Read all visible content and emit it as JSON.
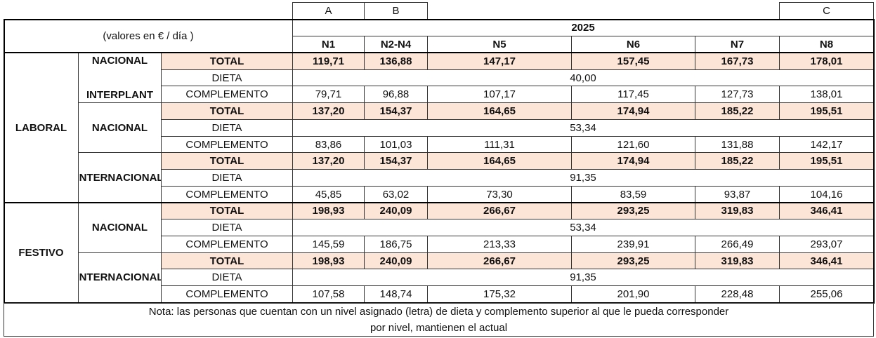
{
  "column_letters": [
    "A",
    "B",
    null,
    null,
    null,
    "C"
  ],
  "header": {
    "units": "(valores en € / día )",
    "year": "2025",
    "levels": [
      "N1",
      "N2-N4",
      "N5",
      "N6",
      "N7",
      "N8"
    ]
  },
  "groups": [
    {
      "label": "LABORAL",
      "subgroups": [
        {
          "lines": [
            "NACIONAL",
            "INTERPLANT"
          ],
          "rows": [
            {
              "label": "TOTAL",
              "values": [
                "119,71",
                "136,88",
                "147,17",
                "157,45",
                "167,73",
                "178,01"
              ]
            },
            {
              "label": "DIETA",
              "value": "40,00"
            },
            {
              "label": "COMPLEMENTO",
              "values": [
                "79,71",
                "96,88",
                "107,17",
                "117,45",
                "127,73",
                "138,01"
              ]
            }
          ]
        },
        {
          "lines": [
            "NACIONAL"
          ],
          "rows": [
            {
              "label": "TOTAL",
              "values": [
                "137,20",
                "154,37",
                "164,65",
                "174,94",
                "185,22",
                "195,51"
              ]
            },
            {
              "label": "DIETA",
              "value": "53,34"
            },
            {
              "label": "COMPLEMENTO",
              "values": [
                "83,86",
                "101,03",
                "111,31",
                "121,60",
                "131,88",
                "142,17"
              ]
            }
          ]
        },
        {
          "lines": [
            "INTERNACIONAL"
          ],
          "rows": [
            {
              "label": "TOTAL",
              "values": [
                "137,20",
                "154,37",
                "164,65",
                "174,94",
                "185,22",
                "195,51"
              ]
            },
            {
              "label": "DIETA",
              "value": "91,35"
            },
            {
              "label": "COMPLEMENTO",
              "values": [
                "45,85",
                "63,02",
                "73,30",
                "83,59",
                "93,87",
                "104,16"
              ]
            }
          ]
        }
      ]
    },
    {
      "label": "FESTIVO",
      "subgroups": [
        {
          "lines": [
            "NACIONAL"
          ],
          "rows": [
            {
              "label": "TOTAL",
              "values": [
                "198,93",
                "240,09",
                "266,67",
                "293,25",
                "319,83",
                "346,41"
              ]
            },
            {
              "label": "DIETA",
              "value": "53,34"
            },
            {
              "label": "COMPLEMENTO",
              "values": [
                "145,59",
                "186,75",
                "213,33",
                "239,91",
                "266,49",
                "293,07"
              ]
            }
          ]
        },
        {
          "lines": [
            "INTERNACIONAL"
          ],
          "rows": [
            {
              "label": "TOTAL",
              "values": [
                "198,93",
                "240,09",
                "266,67",
                "293,25",
                "319,83",
                "346,41"
              ]
            },
            {
              "label": "DIETA",
              "value": "91,35"
            },
            {
              "label": "COMPLEMENTO",
              "values": [
                "107,58",
                "148,74",
                "175,32",
                "201,90",
                "228,48",
                "255,06"
              ]
            }
          ]
        }
      ]
    }
  ],
  "note": {
    "lines": [
      "Nota: las personas que cuentan con un nivel asignado (letra) de dieta y complemento superior al que le pueda corresponder",
      "por nivel, mantienen el actual"
    ]
  }
}
